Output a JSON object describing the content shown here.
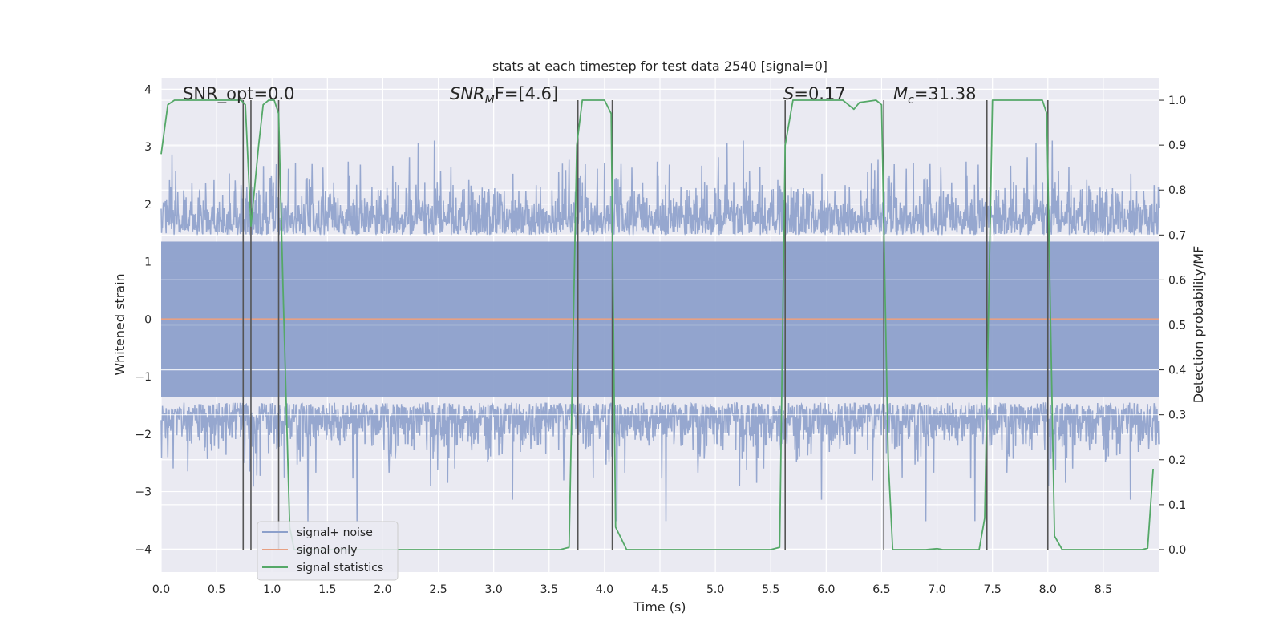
{
  "chart_data": {
    "type": "line",
    "title": "stats at each timestep for test data 2540 [signal=0]",
    "xlabel": "Time (s)",
    "ylabel": "Whitened strain",
    "y2label": "Detection probability/MF",
    "xlim": [
      0,
      9.0
    ],
    "ylim": [
      -4.4,
      4.2
    ],
    "y2lim": [
      -0.05,
      1.05
    ],
    "xticks": [
      "0.0",
      "0.5",
      "1.0",
      "1.5",
      "2.0",
      "2.5",
      "3.0",
      "3.5",
      "4.0",
      "4.5",
      "5.0",
      "5.5",
      "6.0",
      "6.5",
      "7.0",
      "7.5",
      "8.0",
      "8.5"
    ],
    "yticks": [
      "4",
      "3",
      "2",
      "1",
      "0",
      "−1",
      "−2",
      "−3",
      "−4"
    ],
    "y2ticks": [
      "1.0",
      "0.9",
      "0.8",
      "0.7",
      "0.6",
      "0.5",
      "0.4",
      "0.3",
      "0.2",
      "0.1",
      "0.0"
    ],
    "grid": true,
    "legend_position": "lower-left",
    "annotations": {
      "snr_opt": "SNR_opt=0.0",
      "snr_mf_label": "SNR",
      "snr_mf_sub": "M",
      "snr_mf_value": "F=[4.6]",
      "s_label": "S",
      "s_value": "=0.17",
      "mc_label": "M",
      "mc_sub": "c",
      "mc_value": "=31.38"
    },
    "series": [
      {
        "name": "signal+ noise",
        "color": "#8da0cb",
        "description": "whitened noise time series, approx. amplitude +/-2 with spikes up to +/-3.9"
      },
      {
        "name": "signal only",
        "color": "#e7a083",
        "x": [
          0,
          9.0
        ],
        "y": [
          0,
          0
        ]
      },
      {
        "name": "signal statistics",
        "color": "#55a868",
        "axis": "right",
        "x": [
          0.0,
          0.06,
          0.12,
          0.2,
          0.6,
          0.72,
          0.76,
          0.81,
          0.88,
          0.92,
          0.97,
          1.02,
          1.06,
          1.1,
          1.16,
          1.2,
          3.6,
          3.68,
          3.75,
          3.8,
          4.0,
          4.06,
          4.1,
          4.2,
          5.5,
          5.58,
          5.63,
          5.7,
          6.15,
          6.2,
          6.25,
          6.3,
          6.45,
          6.5,
          6.56,
          6.6,
          6.9,
          7.0,
          7.05,
          7.38,
          7.43,
          7.5,
          7.95,
          7.99,
          8.06,
          8.13,
          8.85,
          8.9,
          8.95
        ],
        "y": [
          0.88,
          0.99,
          1.0,
          1.0,
          1.0,
          1.0,
          0.99,
          0.72,
          0.9,
          0.99,
          1.0,
          1.0,
          0.97,
          0.58,
          0.05,
          0.0,
          0.0,
          0.005,
          0.9,
          1.0,
          1.0,
          0.97,
          0.05,
          0.0,
          0.0,
          0.005,
          0.9,
          1.0,
          1.0,
          0.99,
          0.98,
          0.995,
          1.0,
          0.99,
          0.2,
          0.0,
          0.0,
          0.002,
          0.0,
          0.0,
          0.07,
          1.0,
          1.0,
          0.97,
          0.03,
          0.0,
          0.0,
          0.003,
          0.18
        ]
      }
    ],
    "vlines": [
      0.74,
      0.81,
      1.06,
      3.76,
      4.07,
      5.63,
      6.52,
      7.45,
      8.0
    ],
    "vline_color": "#555555"
  },
  "legend": [
    {
      "label": "signal+ noise",
      "color": "#8da0cb"
    },
    {
      "label": "signal only",
      "color": "#e7a083"
    },
    {
      "label": "signal statistics",
      "color": "#55a868"
    }
  ]
}
